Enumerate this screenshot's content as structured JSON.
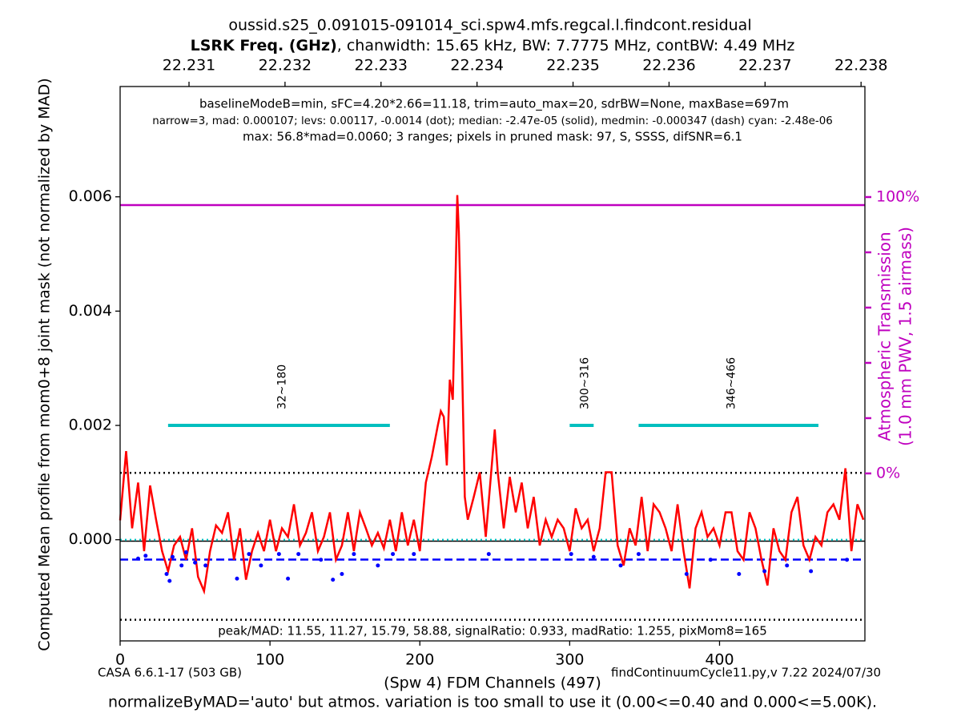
{
  "chart_data": {
    "type": "line",
    "title": "oussid.s25_0.091015-091014_sci.spw4.mfs.regcal.l.findcont.residual",
    "subtitle_bold": "LSRK Freq. (GHz)",
    "subtitle": ", chanwidth: 15.65 kHz, BW: 7.7775 MHz, contBW: 4.49 MHz",
    "annotations": [
      "baselineModeB=min, sFC=4.20*2.66=11.18, trim=auto_max=20, sdrBW=None, maxBase=697m",
      "narrow=3, mad: 0.000107; levs: 0.00117, -0.0014 (dot); median: -2.47e-05 (solid), medmin: -0.000347 (dash) cyan: -2.48e-06",
      "max: 56.8*mad=0.0060; 3 ranges; pixels in pruned mask: 97, S, SSSS, difSNR=6.1",
      "peak/MAD: 11.55, 11.27, 15.79, 58.88, signalRatio: 0.933, madRatio: 1.255, pixMom8=165"
    ],
    "footer_left": "CASA 6.6.1-17 (503 GB)",
    "footer_right": "findContinuumCycle11.py,v 7.22 2024/07/30",
    "footer_note": "normalizeByMAD='auto' but atmos. variation is too small to use it (0.00<=0.40 and 0.000<=5.00K).",
    "xlabel": "(Spw 4) FDM Channels (497)",
    "ylabel": "Computed Mean profile from mom0+8 joint mask (not normalized by MAD)",
    "y2label": [
      "Atmospheric Transmission",
      "(1.0 mm PWV, 1.5 airmass)"
    ],
    "xlim": [
      0,
      497
    ],
    "xticks": [
      0,
      100,
      200,
      300,
      400
    ],
    "x2lim": [
      22.2302825,
      22.23804
    ],
    "x2ticks": [
      22.231,
      22.232,
      22.233,
      22.234,
      22.235,
      22.236,
      22.237,
      22.238
    ],
    "ylim": [
      -0.00177,
      0.00793
    ],
    "yticks": [
      {
        "value": 0,
        "label": "0.000"
      },
      0.002,
      0.004,
      0.006
    ],
    "y2lim": [
      -60.6,
      140
    ],
    "y2ticks": [
      {
        "value": 0,
        "label": "0%"
      },
      {
        "value": 100,
        "label": "100%"
      }
    ],
    "y2ticks_unlabeled": [
      20,
      40,
      60,
      80
    ],
    "y2color": "#bf00bf",
    "series": [
      {
        "name": "profile",
        "color": "#ff0000",
        "x": [
          0,
          4,
          8,
          12,
          16,
          20,
          24,
          28,
          32,
          36,
          40,
          44,
          48,
          52,
          56,
          60,
          64,
          68,
          72,
          76,
          80,
          84,
          88,
          92,
          96,
          100,
          104,
          108,
          112,
          116,
          120,
          124,
          128,
          132,
          136,
          140,
          144,
          148,
          152,
          156,
          160,
          164,
          168,
          172,
          176,
          180,
          184,
          188,
          192,
          196,
          200,
          204,
          208,
          212,
          214,
          216,
          218,
          220,
          222,
          224,
          225,
          226,
          228,
          230,
          232,
          236,
          240,
          244,
          248,
          250,
          252,
          256,
          260,
          264,
          268,
          272,
          276,
          280,
          284,
          288,
          292,
          296,
          300,
          304,
          308,
          312,
          316,
          320,
          324,
          328,
          332,
          336,
          340,
          344,
          348,
          352,
          356,
          360,
          364,
          368,
          372,
          376,
          380,
          384,
          388,
          392,
          396,
          400,
          404,
          408,
          412,
          416,
          420,
          424,
          428,
          432,
          436,
          440,
          444,
          448,
          452,
          456,
          460,
          464,
          468,
          472,
          476,
          480,
          484,
          488,
          492,
          496
        ],
        "values": [
          0.00034,
          0.00155,
          0.0002,
          0.001,
          -0.0002,
          0.00095,
          0.00035,
          -0.0002,
          -0.00055,
          -0.0001,
          5e-05,
          -0.00035,
          0.0002,
          -0.00065,
          -0.0009,
          -0.0002,
          0.00025,
          0.00012,
          0.00048,
          -0.00035,
          0.0002,
          -0.0007,
          -0.0002,
          0.00012,
          -0.0002,
          0.00035,
          -0.0002,
          0.0002,
          5e-05,
          0.00062,
          -0.0001,
          0.00012,
          0.00048,
          -0.0002,
          5e-05,
          0.00048,
          -0.00035,
          -0.0001,
          0.00048,
          -0.0002,
          0.00048,
          0.0002,
          -0.0001,
          0.00012,
          -0.00015,
          0.00035,
          -0.0002,
          0.00048,
          -0.0001,
          0.00035,
          -0.0002,
          0.001,
          0.00145,
          0.002,
          0.00225,
          0.00215,
          0.0013,
          0.0028,
          0.00245,
          0.0048,
          0.00603,
          0.0054,
          0.0033,
          0.00075,
          0.00035,
          0.00075,
          0.00118,
          5e-05,
          0.0013,
          0.00193,
          0.00118,
          0.0002,
          0.0011,
          0.00048,
          0.001,
          0.0002,
          0.00075,
          -0.0001,
          0.00035,
          5e-05,
          0.00035,
          0.0002,
          -0.0002,
          0.00055,
          0.0002,
          0.00035,
          -0.0002,
          0.0002,
          0.00118,
          0.00118,
          -0.0001,
          -0.00045,
          0.0002,
          -0.0001,
          0.00075,
          -0.0002,
          0.00062,
          0.00048,
          0.0002,
          -0.0002,
          0.00062,
          -0.0002,
          -0.00085,
          0.0002,
          0.00048,
          5e-05,
          0.0002,
          -0.0001,
          0.00048,
          0.00048,
          -0.0002,
          -0.00035,
          0.00048,
          0.0002,
          -0.00035,
          -0.0008,
          0.0002,
          -0.0002,
          -0.00035,
          0.00048,
          0.00075,
          -0.0001,
          -0.00035,
          5e-05,
          -0.0001,
          0.00048,
          0.00062,
          0.00035,
          0.00125,
          -0.0002,
          0.00062,
          0.00035
        ]
      },
      {
        "name": "masked",
        "color": "#0000ff",
        "x": [
          12,
          17,
          31,
          33,
          35,
          41,
          44,
          50,
          57,
          78,
          86,
          94,
          106,
          112,
          119,
          134,
          142,
          148,
          156,
          172,
          182,
          196,
          246,
          301,
          316,
          334,
          346,
          378,
          394,
          413,
          430,
          445,
          461,
          485
        ],
        "values": [
          -0.00033,
          -0.00028,
          -0.0006,
          -0.00072,
          -0.0003,
          -0.00045,
          -0.00022,
          -0.0004,
          -0.00045,
          -0.00068,
          -0.00025,
          -0.00045,
          -0.00025,
          -0.00068,
          -0.00025,
          -0.00035,
          -0.0007,
          -0.0006,
          -0.00025,
          -0.00045,
          -0.00025,
          -0.00025,
          -0.00025,
          -0.00025,
          -0.0003,
          -0.00045,
          -0.00025,
          -0.0006,
          -0.00035,
          -0.0006,
          -0.00055,
          -0.00045,
          -0.00055,
          -0.00035
        ]
      }
    ],
    "hlines": [
      {
        "value": 0.00117,
        "style": "dotted",
        "color": "#000000"
      },
      {
        "value": -0.0014,
        "style": "dotted",
        "color": "#000000"
      },
      {
        "value": -2.47e-05,
        "style": "solid",
        "color": "#000000"
      },
      {
        "value": -0.000347,
        "style": "dashed",
        "color": "#0000ff"
      },
      {
        "value": -2.48e-06,
        "style": "dotted",
        "color": "#00bfbf"
      }
    ],
    "transmission": {
      "value": 97.1,
      "color": "#bf00bf"
    },
    "range_level": 0.002,
    "range_color": "#00bfbf",
    "ranges": [
      {
        "start": 32,
        "end": 180,
        "label": "32~180"
      },
      {
        "start": 300,
        "end": 316,
        "label": "300~316"
      },
      {
        "start": 346,
        "end": 466,
        "label": "346~466"
      }
    ]
  }
}
